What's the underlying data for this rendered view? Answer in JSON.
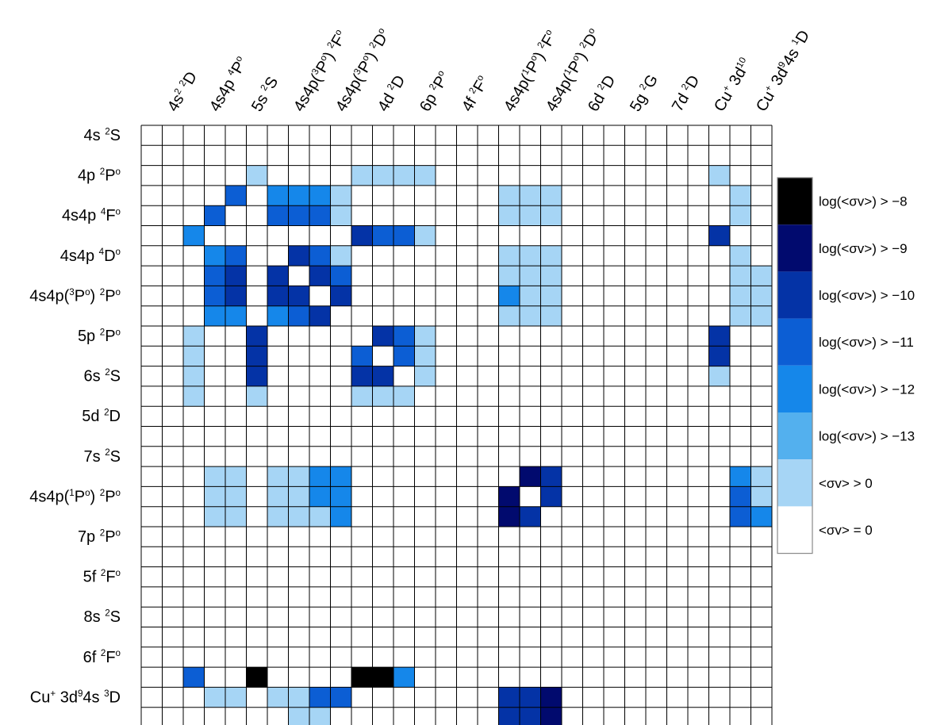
{
  "chart_data": {
    "type": "heatmap",
    "title": "",
    "n_rows": 30,
    "n_cols": 30,
    "row_labels": [
      {
        "row": 1,
        "html": "4s <sup>2</sup>S"
      },
      {
        "row": 3,
        "html": "4p <sup>2</sup>P<sup>o</sup>"
      },
      {
        "row": 5,
        "html": "4s4p <sup>4</sup>F<sup>o</sup>"
      },
      {
        "row": 7,
        "html": "4s4p <sup>4</sup>D<sup>o</sup>"
      },
      {
        "row": 9,
        "html": "4s4p(<sup>3</sup>P<sup>o</sup>) <sup>2</sup>P<sup>o</sup>"
      },
      {
        "row": 11,
        "html": "5p <sup>2</sup>P<sup>o</sup>"
      },
      {
        "row": 13,
        "html": "6s <sup>2</sup>S"
      },
      {
        "row": 15,
        "html": "5d <sup>2</sup>D"
      },
      {
        "row": 17,
        "html": "7s <sup>2</sup>S"
      },
      {
        "row": 19,
        "html": "4s4p(<sup>1</sup>P<sup>o</sup>) <sup>2</sup>P<sup>o</sup>"
      },
      {
        "row": 21,
        "html": "7p <sup>2</sup>P<sup>o</sup>"
      },
      {
        "row": 23,
        "html": "5f <sup>2</sup>F<sup>o</sup>"
      },
      {
        "row": 25,
        "html": "8s <sup>2</sup>S"
      },
      {
        "row": 27,
        "html": "6f <sup>2</sup>F<sup>o</sup>"
      },
      {
        "row": 29,
        "html": "Cu<sup>+</sup> 3d<sup>9</sup>4s <sup>3</sup>D"
      }
    ],
    "col_labels": [
      {
        "col": 2,
        "html": "4s<sup>2</sup> <sup>2</sup>D"
      },
      {
        "col": 4,
        "html": "4s4p <sup>4</sup>P<sup>o</sup>"
      },
      {
        "col": 6,
        "html": "5s <sup>2</sup>S"
      },
      {
        "col": 8,
        "html": "4s4p(<sup>3</sup>P<sup>o</sup>) <sup>2</sup>F<sup>o</sup>"
      },
      {
        "col": 10,
        "html": "4s4p(<sup>3</sup>P<sup>o</sup>) <sup>2</sup>D<sup>o</sup>"
      },
      {
        "col": 12,
        "html": "4d <sup>2</sup>D"
      },
      {
        "col": 14,
        "html": "6p <sup>2</sup>P<sup>o</sup>"
      },
      {
        "col": 16,
        "html": "4f <sup>2</sup>F<sup>o</sup>"
      },
      {
        "col": 18,
        "html": "4s4p(<sup>1</sup>P<sup>o</sup>) <sup>2</sup>F<sup>o</sup>"
      },
      {
        "col": 20,
        "html": "4s4p(<sup>1</sup>P<sup>o</sup>) <sup>2</sup>D<sup>o</sup>"
      },
      {
        "col": 22,
        "html": "6d <sup>2</sup>D"
      },
      {
        "col": 24,
        "html": "5g <sup>2</sup>G"
      },
      {
        "col": 26,
        "html": "7d <sup>2</sup>D"
      },
      {
        "col": 28,
        "html": "Cu<sup>+</sup> 3d<sup>10</sup>"
      },
      {
        "col": 30,
        "html": "Cu<sup>+</sup> 3d<sup>9</sup>4s <sup>1</sup>D"
      }
    ],
    "levels": [
      {
        "level": 7,
        "label": "log(<σv>) >  −8",
        "color": "#000000"
      },
      {
        "level": 6,
        "label": "log(<σv>) >  −9",
        "color": "#010a6e"
      },
      {
        "level": 5,
        "label": "log(<σv>) > −10",
        "color": "#0433a6"
      },
      {
        "level": 4,
        "label": "log(<σv>) > −11",
        "color": "#0c5ed4"
      },
      {
        "level": 3,
        "label": "log(<σv>) > −12",
        "color": "#1587ea"
      },
      {
        "level": 2,
        "label": "log(<σv>) > −13",
        "color": "#53b0ee"
      },
      {
        "level": 1,
        "label": "<σv> > 0",
        "color": "#a6d5f5"
      },
      {
        "level": 0,
        "label": "<σv> = 0",
        "color": "#ffffff"
      }
    ],
    "cells": [
      {
        "row": 3,
        "values": [
          [
            6,
            1
          ],
          [
            11,
            1
          ],
          [
            12,
            1
          ],
          [
            13,
            1
          ],
          [
            14,
            1
          ],
          [
            28,
            1
          ]
        ]
      },
      {
        "row": 4,
        "values": [
          [
            5,
            4
          ],
          [
            7,
            3
          ],
          [
            8,
            3
          ],
          [
            9,
            3
          ],
          [
            10,
            1
          ],
          [
            18,
            1
          ],
          [
            19,
            1
          ],
          [
            20,
            1
          ],
          [
            29,
            1
          ]
        ]
      },
      {
        "row": 5,
        "values": [
          [
            4,
            4
          ],
          [
            7,
            4
          ],
          [
            8,
            4
          ],
          [
            9,
            4
          ],
          [
            10,
            1
          ],
          [
            18,
            1
          ],
          [
            19,
            1
          ],
          [
            20,
            1
          ],
          [
            29,
            1
          ]
        ]
      },
      {
        "row": 6,
        "values": [
          [
            3,
            3
          ],
          [
            11,
            5
          ],
          [
            12,
            4
          ],
          [
            13,
            4
          ],
          [
            14,
            1
          ],
          [
            28,
            5
          ]
        ]
      },
      {
        "row": 7,
        "values": [
          [
            4,
            3
          ],
          [
            5,
            4
          ],
          [
            8,
            5
          ],
          [
            9,
            4
          ],
          [
            10,
            1
          ],
          [
            18,
            1
          ],
          [
            19,
            1
          ],
          [
            20,
            1
          ],
          [
            29,
            1
          ]
        ]
      },
      {
        "row": 8,
        "values": [
          [
            4,
            4
          ],
          [
            5,
            5
          ],
          [
            7,
            5
          ],
          [
            9,
            5
          ],
          [
            10,
            4
          ],
          [
            18,
            1
          ],
          [
            19,
            1
          ],
          [
            20,
            1
          ],
          [
            29,
            1
          ],
          [
            30,
            1
          ]
        ]
      },
      {
        "row": 9,
        "values": [
          [
            4,
            4
          ],
          [
            5,
            5
          ],
          [
            7,
            5
          ],
          [
            8,
            5
          ],
          [
            10,
            5
          ],
          [
            18,
            3
          ],
          [
            19,
            1
          ],
          [
            20,
            1
          ],
          [
            29,
            1
          ],
          [
            30,
            1
          ]
        ]
      },
      {
        "row": 10,
        "values": [
          [
            4,
            3
          ],
          [
            5,
            3
          ],
          [
            7,
            3
          ],
          [
            8,
            4
          ],
          [
            9,
            5
          ],
          [
            18,
            1
          ],
          [
            19,
            1
          ],
          [
            20,
            1
          ],
          [
            29,
            1
          ],
          [
            30,
            1
          ]
        ]
      },
      {
        "row": 11,
        "values": [
          [
            3,
            1
          ],
          [
            6,
            5
          ],
          [
            12,
            5
          ],
          [
            13,
            4
          ],
          [
            14,
            1
          ],
          [
            28,
            5
          ]
        ]
      },
      {
        "row": 12,
        "values": [
          [
            3,
            1
          ],
          [
            6,
            5
          ],
          [
            11,
            4
          ],
          [
            13,
            4
          ],
          [
            14,
            1
          ],
          [
            28,
            5
          ]
        ]
      },
      {
        "row": 13,
        "values": [
          [
            3,
            1
          ],
          [
            6,
            5
          ],
          [
            11,
            5
          ],
          [
            12,
            5
          ],
          [
            14,
            1
          ],
          [
            28,
            1
          ]
        ]
      },
      {
        "row": 14,
        "values": [
          [
            3,
            1
          ],
          [
            6,
            1
          ],
          [
            11,
            1
          ],
          [
            12,
            1
          ],
          [
            13,
            1
          ]
        ]
      },
      {
        "row": 18,
        "values": [
          [
            4,
            1
          ],
          [
            5,
            1
          ],
          [
            7,
            1
          ],
          [
            8,
            1
          ],
          [
            9,
            3
          ],
          [
            10,
            3
          ],
          [
            19,
            6
          ],
          [
            20,
            5
          ],
          [
            29,
            3
          ],
          [
            30,
            1
          ]
        ]
      },
      {
        "row": 19,
        "values": [
          [
            4,
            1
          ],
          [
            5,
            1
          ],
          [
            7,
            1
          ],
          [
            8,
            1
          ],
          [
            9,
            3
          ],
          [
            10,
            3
          ],
          [
            18,
            6
          ],
          [
            20,
            5
          ],
          [
            29,
            4
          ],
          [
            30,
            1
          ]
        ]
      },
      {
        "row": 20,
        "values": [
          [
            4,
            1
          ],
          [
            5,
            1
          ],
          [
            7,
            1
          ],
          [
            8,
            1
          ],
          [
            9,
            1
          ],
          [
            10,
            3
          ],
          [
            18,
            6
          ],
          [
            19,
            5
          ],
          [
            29,
            4
          ],
          [
            30,
            3
          ]
        ]
      },
      {
        "row": 28,
        "values": [
          [
            3,
            4
          ],
          [
            6,
            7
          ],
          [
            11,
            7
          ],
          [
            12,
            7
          ],
          [
            13,
            3
          ]
        ]
      },
      {
        "row": 29,
        "values": [
          [
            4,
            1
          ],
          [
            5,
            1
          ],
          [
            7,
            1
          ],
          [
            8,
            1
          ],
          [
            9,
            4
          ],
          [
            10,
            4
          ],
          [
            18,
            5
          ],
          [
            19,
            5
          ],
          [
            20,
            6
          ]
        ]
      },
      {
        "row": 30,
        "values": [
          [
            8,
            1
          ],
          [
            9,
            1
          ],
          [
            18,
            5
          ],
          [
            19,
            5
          ],
          [
            20,
            6
          ]
        ]
      }
    ]
  }
}
